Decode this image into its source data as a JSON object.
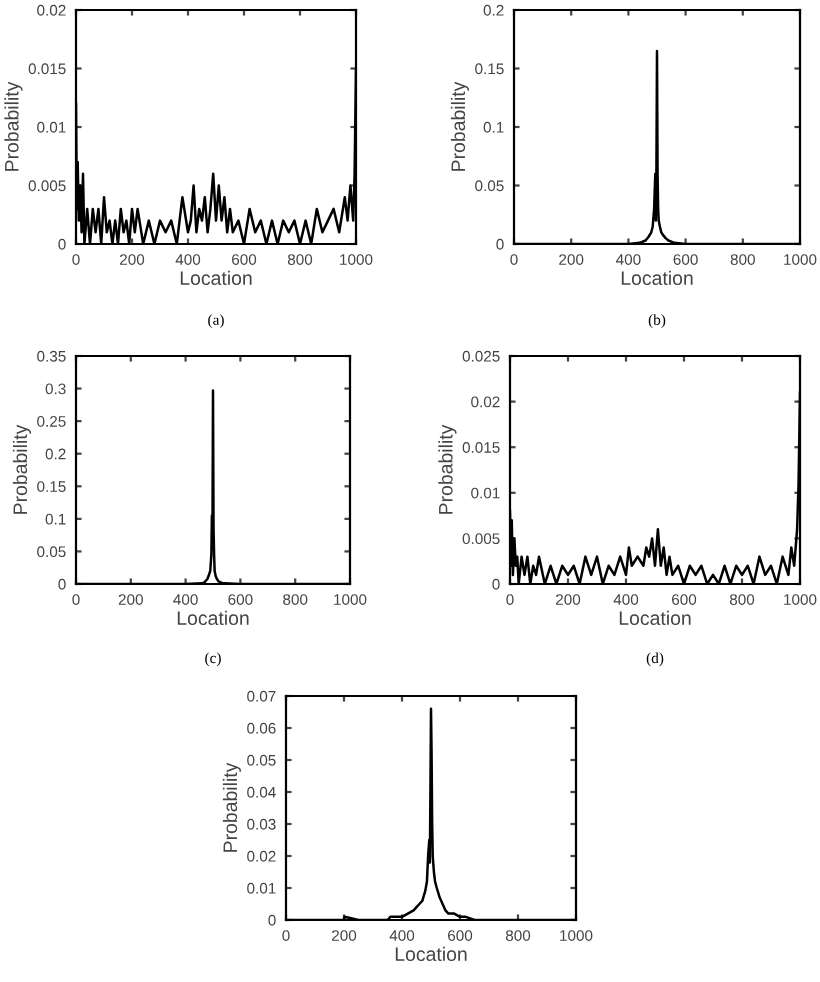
{
  "chart_data": [
    {
      "type": "line",
      "xlabel": "Location",
      "ylabel": "Probability",
      "annotations": [
        "(a)"
      ],
      "xlim": [
        0,
        1000
      ],
      "ylim": [
        0,
        0.02
      ],
      "xticks": [
        0,
        200,
        400,
        600,
        800,
        1000
      ],
      "yticks": [
        0,
        0.005,
        0.01,
        0.015,
        0.02
      ],
      "grid": false,
      "legend": false,
      "series": [
        {
          "color": "#000000",
          "x": [
            0,
            3,
            6,
            10,
            15,
            20,
            25,
            30,
            40,
            50,
            60,
            70,
            80,
            90,
            100,
            110,
            120,
            130,
            140,
            150,
            160,
            170,
            180,
            190,
            200,
            210,
            220,
            240,
            260,
            280,
            300,
            320,
            340,
            360,
            380,
            400,
            410,
            420,
            430,
            440,
            450,
            460,
            470,
            480,
            490,
            500,
            510,
            520,
            530,
            540,
            550,
            560,
            580,
            600,
            620,
            640,
            660,
            680,
            700,
            720,
            740,
            760,
            780,
            800,
            820,
            840,
            860,
            880,
            900,
            920,
            940,
            960,
            970,
            980,
            990,
            995,
            1000
          ],
          "values": [
            0.012,
            0.003,
            0.007,
            0.002,
            0.005,
            0.001,
            0.006,
            0.0,
            0.003,
            0.0,
            0.003,
            0.001,
            0.003,
            0,
            0.004,
            0.001,
            0.002,
            0,
            0.002,
            0,
            0.003,
            0.001,
            0.002,
            0,
            0.003,
            0.001,
            0.003,
            0,
            0.002,
            0,
            0.002,
            0.001,
            0.002,
            0,
            0.004,
            0.001,
            0.002,
            0.005,
            0.001,
            0.003,
            0.002,
            0.004,
            0.001,
            0.003,
            0.006,
            0.002,
            0.005,
            0.002,
            0.004,
            0.001,
            0.003,
            0.001,
            0.002,
            0,
            0.003,
            0.001,
            0.002,
            0,
            0.002,
            0,
            0.002,
            0.001,
            0.002,
            0,
            0.002,
            0,
            0.003,
            0.001,
            0.002,
            0.003,
            0.001,
            0.004,
            0.002,
            0.005,
            0.002,
            0.006,
            0.015
          ]
        }
      ]
    },
    {
      "type": "line",
      "xlabel": "Location",
      "ylabel": "Probability",
      "annotations": [
        "(b)"
      ],
      "xlim": [
        0,
        1000
      ],
      "ylim": [
        0,
        0.2
      ],
      "xticks": [
        0,
        200,
        400,
        600,
        800,
        1000
      ],
      "yticks": [
        0,
        0.05,
        0.1,
        0.15,
        0.2
      ],
      "grid": false,
      "legend": false,
      "series": [
        {
          "color": "#000000",
          "x": [
            0,
            100,
            200,
            300,
            400,
            440,
            460,
            470,
            480,
            485,
            490,
            494,
            496,
            498,
            500,
            502,
            504,
            506,
            510,
            515,
            520,
            530,
            540,
            560,
            600,
            700,
            800,
            900,
            1000
          ],
          "values": [
            0,
            0,
            0,
            0,
            0,
            0.001,
            0.003,
            0.006,
            0.01,
            0.015,
            0.03,
            0.06,
            0.02,
            0.065,
            0.165,
            0.06,
            0.03,
            0.02,
            0.015,
            0.01,
            0.008,
            0.005,
            0.003,
            0.001,
            0,
            0,
            0,
            0,
            0
          ]
        }
      ]
    },
    {
      "type": "line",
      "xlabel": "Location",
      "ylabel": "Probability",
      "annotations": [
        "(c)"
      ],
      "xlim": [
        0,
        1000
      ],
      "ylim": [
        0,
        0.35
      ],
      "xticks": [
        0,
        200,
        400,
        600,
        800,
        1000
      ],
      "yticks": [
        0,
        0.05,
        0.1,
        0.15,
        0.2,
        0.25,
        0.3,
        0.35
      ],
      "grid": false,
      "legend": false,
      "series": [
        {
          "color": "#000000",
          "x": [
            0,
            100,
            200,
            300,
            400,
            460,
            470,
            480,
            486,
            490,
            494,
            496,
            498,
            500,
            502,
            504,
            506,
            510,
            514,
            520,
            530,
            540,
            600,
            700,
            800,
            900,
            1000
          ],
          "values": [
            0,
            0,
            0,
            0,
            0,
            0.001,
            0.003,
            0.008,
            0.015,
            0.02,
            0.045,
            0.105,
            0.06,
            0.297,
            0.085,
            0.045,
            0.02,
            0.012,
            0.008,
            0.004,
            0.002,
            0.001,
            0,
            0,
            0,
            0,
            0
          ]
        }
      ]
    },
    {
      "type": "line",
      "xlabel": "Location",
      "ylabel": "Probability",
      "annotations": [
        "(d)"
      ],
      "xlim": [
        0,
        1000
      ],
      "ylim": [
        0,
        0.025
      ],
      "xticks": [
        0,
        200,
        400,
        600,
        800,
        1000
      ],
      "yticks": [
        0,
        0.005,
        0.01,
        0.015,
        0.02,
        0.025
      ],
      "grid": false,
      "legend": false,
      "series": [
        {
          "color": "#000000",
          "x": [
            0,
            3,
            6,
            10,
            15,
            20,
            25,
            30,
            40,
            50,
            60,
            70,
            80,
            90,
            100,
            120,
            140,
            160,
            180,
            200,
            220,
            240,
            260,
            280,
            300,
            320,
            340,
            360,
            380,
            400,
            410,
            420,
            440,
            460,
            470,
            480,
            490,
            500,
            510,
            520,
            530,
            540,
            550,
            560,
            580,
            600,
            620,
            640,
            660,
            680,
            700,
            720,
            740,
            760,
            780,
            800,
            820,
            840,
            860,
            880,
            900,
            920,
            940,
            960,
            970,
            980,
            990,
            995,
            1000
          ],
          "values": [
            0.008,
            0.002,
            0.007,
            0.001,
            0.005,
            0.002,
            0.003,
            0,
            0.003,
            0.001,
            0.003,
            0,
            0.002,
            0.001,
            0.003,
            0,
            0.002,
            0,
            0.002,
            0.001,
            0.002,
            0,
            0.003,
            0.001,
            0.003,
            0,
            0.002,
            0.001,
            0.003,
            0.001,
            0.004,
            0.002,
            0.003,
            0.002,
            0.004,
            0.003,
            0.005,
            0.002,
            0.006,
            0.002,
            0.004,
            0.001,
            0.003,
            0.001,
            0.002,
            0,
            0.002,
            0.001,
            0.002,
            0,
            0.001,
            0,
            0.002,
            0,
            0.002,
            0.001,
            0.002,
            0,
            0.003,
            0.001,
            0.002,
            0,
            0.003,
            0.001,
            0.004,
            0.002,
            0.006,
            0.011,
            0.021
          ]
        }
      ]
    },
    {
      "type": "line",
      "xlabel": "Location",
      "ylabel": "Probability",
      "xlim": [
        0,
        1000
      ],
      "ylim": [
        0,
        0.07
      ],
      "xticks": [
        0,
        200,
        400,
        600,
        800,
        1000
      ],
      "yticks": [
        0,
        0.01,
        0.02,
        0.03,
        0.04,
        0.05,
        0.06,
        0.07
      ],
      "grid": false,
      "legend": false,
      "series": [
        {
          "color": "#000000",
          "x": [
            0,
            100,
            200,
            202,
            250,
            300,
            350,
            360,
            400,
            420,
            440,
            450,
            460,
            470,
            480,
            486,
            490,
            494,
            496,
            498,
            500,
            502,
            504,
            506,
            510,
            514,
            520,
            530,
            540,
            550,
            560,
            580,
            600,
            620,
            650,
            700,
            800,
            900,
            1000
          ],
          "values": [
            0,
            0,
            0,
            0.001,
            0,
            0,
            0,
            0.001,
            0.001,
            0.002,
            0.003,
            0.004,
            0.005,
            0.006,
            0.009,
            0.012,
            0.02,
            0.025,
            0.018,
            0.04,
            0.066,
            0.052,
            0.03,
            0.02,
            0.015,
            0.012,
            0.01,
            0.007,
            0.005,
            0.003,
            0.002,
            0.002,
            0.001,
            0.001,
            0,
            0,
            0,
            0,
            0
          ]
        }
      ]
    }
  ]
}
